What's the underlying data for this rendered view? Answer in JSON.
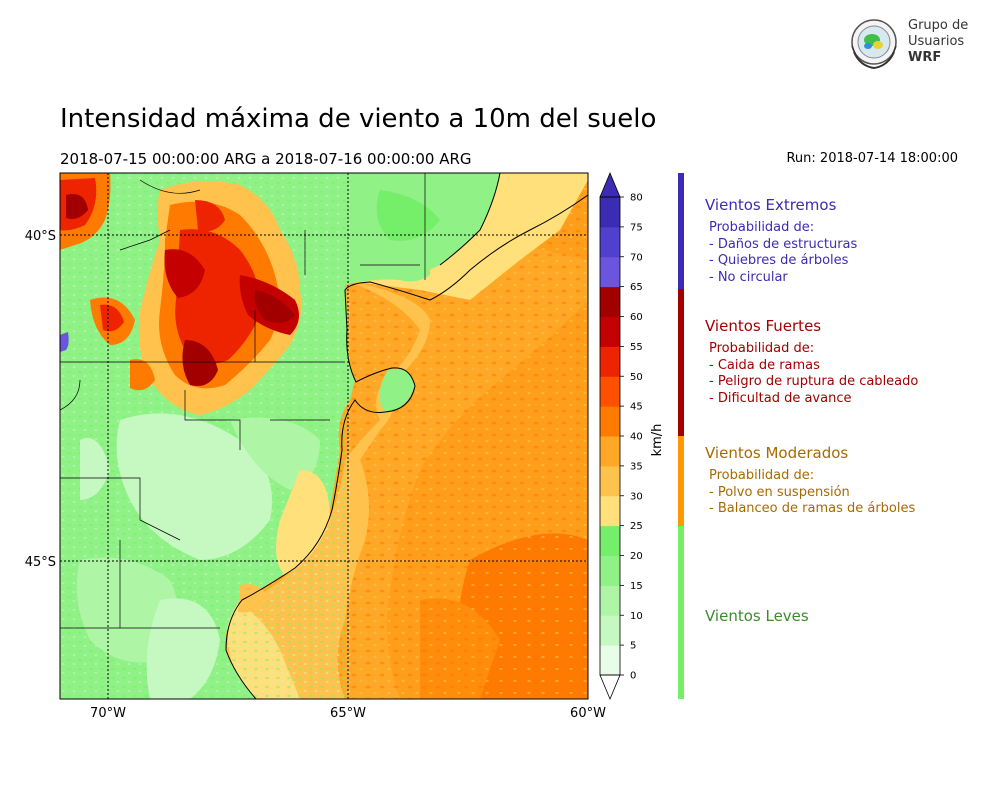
{
  "title": "Intensidad máxima de viento a 10m del suelo",
  "period": "2018-07-15 00:00:00 ARG  a  2018-07-16 00:00:00 ARG",
  "run": "Run: 2018-07-14 18:00:00",
  "logo": {
    "line1": "Grupo de",
    "line2": "Usuarios",
    "line3": "WRF"
  },
  "map": {
    "lat_labels": [
      "40°S",
      "45°S"
    ],
    "lon_labels": [
      "70°W",
      "65°W",
      "60°W"
    ]
  },
  "colorbar": {
    "unit_label": "km/h",
    "ticks": [
      "0",
      "5",
      "10",
      "15",
      "20",
      "25",
      "30",
      "35",
      "40",
      "45",
      "50",
      "55",
      "60",
      "65",
      "70",
      "75",
      "80"
    ],
    "colors": [
      "#e8fde8",
      "#c6f8c1",
      "#aef5a6",
      "#8ff186",
      "#75ee6a",
      "#ffe07a",
      "#ffc34d",
      "#ffa827",
      "#ff7a00",
      "#ff5000",
      "#ee2400",
      "#c50000",
      "#a20000",
      "#6a55dc",
      "#513fce",
      "#3c2cb4"
    ],
    "over_color": "#3c2cb4",
    "under_color": "#ffffff"
  },
  "legend": [
    {
      "title": "Vientos Extremos",
      "color": "#3c2cb4",
      "sub": [
        "Probabilidad de:",
        "- Daños de estructuras",
        "- Quiebres de árboles",
        "- No circular"
      ]
    },
    {
      "title": "Vientos Fuertes",
      "color": "#a20000",
      "sub": [
        "Probabilidad de:",
        "- Caida de ramas",
        "- Peligro de ruptura de cableado",
        "- Dificultad de avance"
      ]
    },
    {
      "title": "Vientos Moderados",
      "color": "#a66b00",
      "sub": [
        "Probabilidad de:",
        "- Polvo en suspensión",
        "- Balanceo de ramas de árboles"
      ]
    },
    {
      "title": "Vientos Leves",
      "color": "#3d8a2f",
      "sub": []
    }
  ],
  "legend_bar_colors": [
    "#3c2cb4",
    "#a20000",
    "#ff9900",
    "#75ee6a"
  ]
}
